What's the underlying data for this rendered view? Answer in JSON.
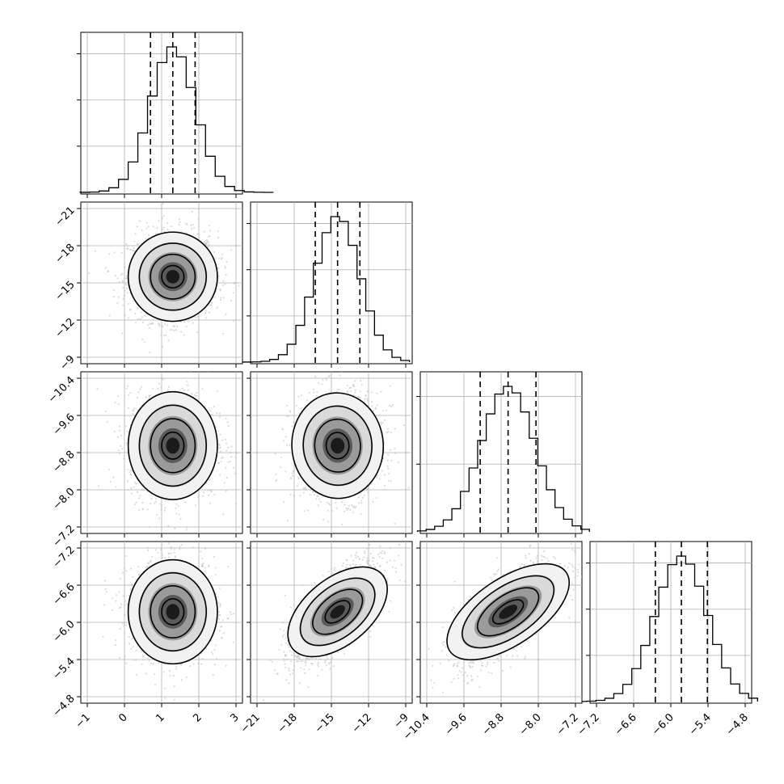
{
  "chart_data": {
    "type": "corner",
    "params": [
      {
        "xticks": [
          "−1",
          "0",
          "1",
          "2",
          "3"
        ],
        "yticks": [
          "−9",
          "−12",
          "−15",
          "−18",
          "−21"
        ],
        "hist_range": [
          -1.2,
          4.0
        ],
        "mean": 1.3,
        "sd": 0.6,
        "quantiles": [
          0.7,
          1.3,
          1.9
        ],
        "hist_yticks_count": 3
      },
      {
        "xticks": [
          "−21",
          "−18",
          "−15",
          "−12",
          "−9"
        ],
        "yticks": [
          "−7.2",
          "−8.0",
          "−8.8",
          "−9.6",
          "−10.4"
        ],
        "hist_range": [
          -22.8,
          -8.7
        ],
        "mean": -14.5,
        "sd": 1.8,
        "quantiles": [
          -16.3,
          -14.5,
          -12.7
        ],
        "hist_yticks_count": 3
      },
      {
        "xticks": [
          "−10.4",
          "−9.6",
          "−8.8",
          "−8.0",
          "−7.2"
        ],
        "yticks": [
          "−4.8",
          "−5.4",
          "−6.0",
          "−6.6",
          "−7.2"
        ],
        "hist_range": [
          -10.6,
          -6.9
        ],
        "mean": -8.65,
        "sd": 0.58,
        "quantiles": [
          -9.25,
          -8.65,
          -8.05
        ],
        "hist_yticks_count": 2
      },
      {
        "xticks": [
          "−7.2",
          "−6.6",
          "−6.0",
          "−5.4",
          "−4.8"
        ],
        "yticks": [],
        "hist_range": [
          -7.5,
          -4.6
        ],
        "mean": -5.83,
        "sd": 0.42,
        "quantiles": [
          -6.25,
          -5.83,
          -5.41
        ],
        "hist_yticks_count": 3
      }
    ],
    "tick_values": [
      [
        -1,
        0,
        1,
        2,
        3
      ],
      [
        -21,
        -18,
        -15,
        -12,
        -9
      ],
      [
        -10.4,
        -9.6,
        -8.8,
        -8.0,
        -7.2
      ],
      [
        -7.2,
        -6.6,
        -6.0,
        -5.4,
        -4.8
      ]
    ],
    "correlations": {
      "1-0": 0.0,
      "2-0": 0.0,
      "2-1": 0.05,
      "3-0": 0.0,
      "3-1": 0.7,
      "3-2": 0.7
    },
    "hist_bins": 20,
    "grid": true,
    "colors": {
      "axis": "#000000",
      "grid": "#b0b0b0",
      "scatter": "#bdbdbd",
      "contour": "#000000",
      "density_dark": "#1a1a1a"
    }
  }
}
